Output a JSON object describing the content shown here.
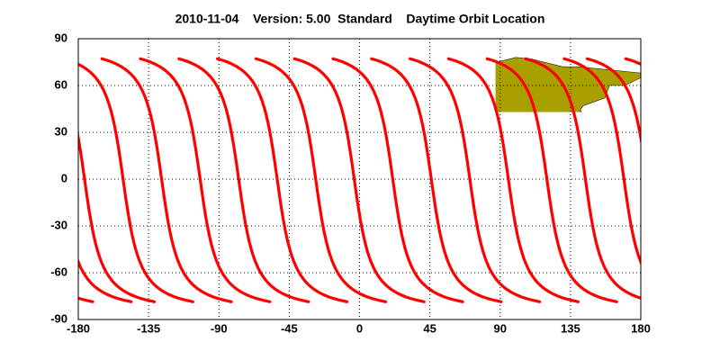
{
  "chart_data": {
    "type": "map",
    "title": "2010-11-04    Version: 5.00  Standard    Daytime Orbit Location",
    "xlim": [
      -180,
      180
    ],
    "xticks": [
      -180,
      -135,
      -90,
      -45,
      0,
      45,
      90,
      135,
      180
    ],
    "ylim": [
      -90,
      90
    ],
    "yticks": [
      -90,
      -60,
      -30,
      0,
      30,
      60,
      90
    ],
    "grid": true,
    "land_color": "#a8a000",
    "track_color": "#ff0000"
  }
}
